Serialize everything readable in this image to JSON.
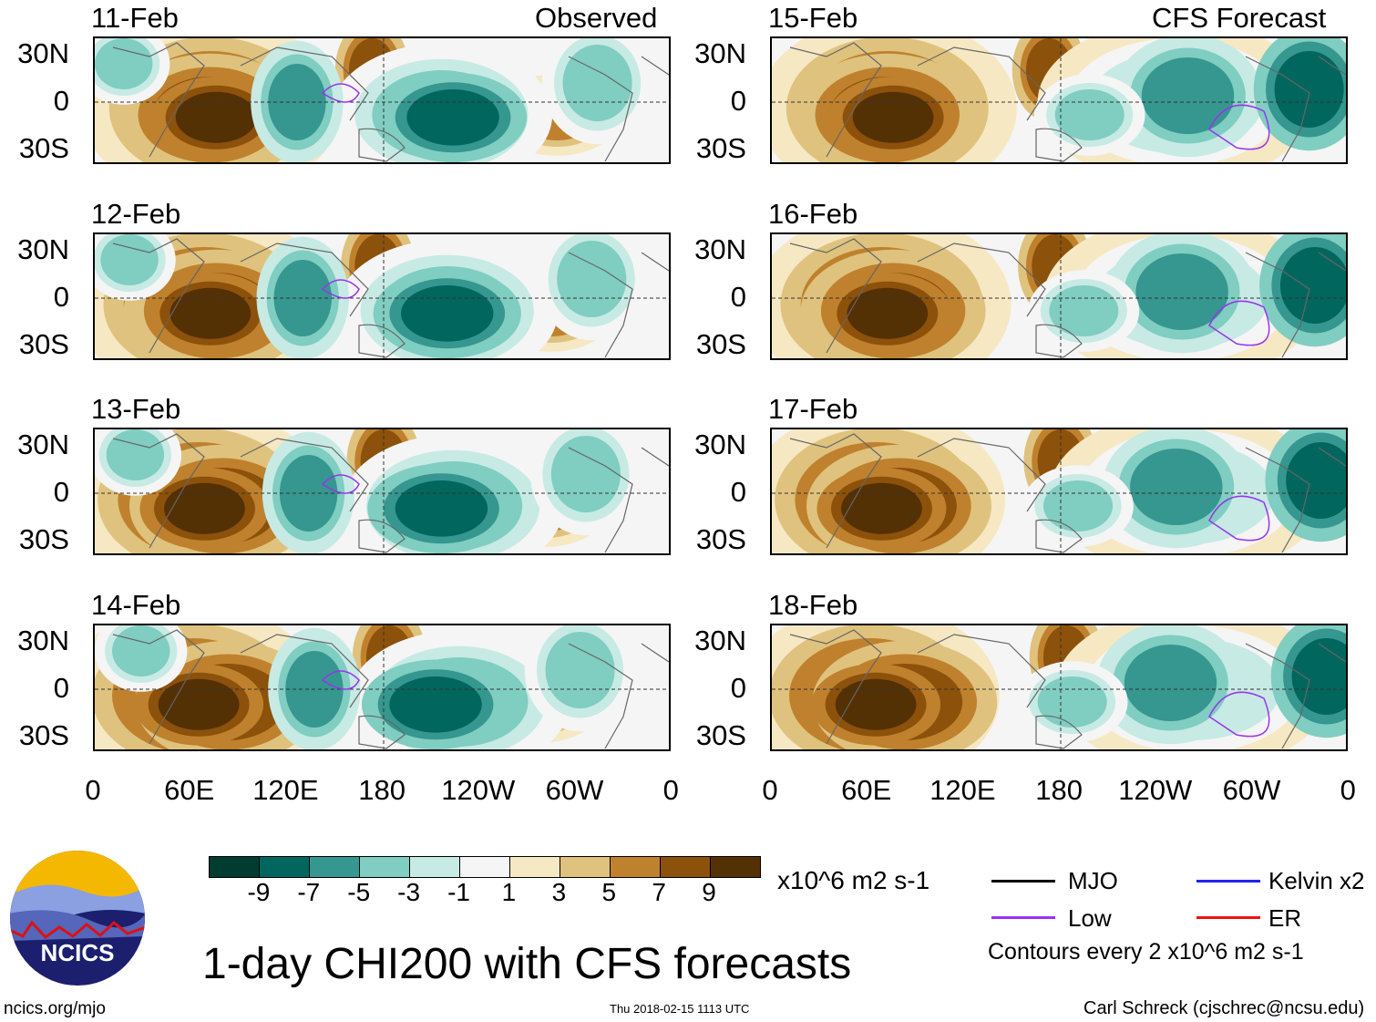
{
  "headers": {
    "observed": "Observed",
    "forecast": "CFS Forecast"
  },
  "panels_left": [
    "11-Feb",
    "12-Feb",
    "13-Feb",
    "14-Feb"
  ],
  "panels_right": [
    "15-Feb",
    "16-Feb",
    "17-Feb",
    "18-Feb"
  ],
  "y_ticks": [
    "30N",
    "0",
    "30S"
  ],
  "x_ticks": [
    "0",
    "60E",
    "120E",
    "180",
    "120W",
    "60W",
    "0"
  ],
  "colorbar": {
    "colors": [
      "#003c30",
      "#01665e",
      "#35978f",
      "#80cdc1",
      "#c7eae5",
      "#f5f5f5",
      "#f6e8c3",
      "#dfc27d",
      "#bf812d",
      "#8c510a",
      "#543005"
    ],
    "labels": [
      "-9",
      "-7",
      "-5",
      "-3",
      "-1",
      "1",
      "3",
      "5",
      "7",
      "9"
    ],
    "units": "x10^6 m2 s-1"
  },
  "legend": {
    "items": [
      {
        "label": "MJO",
        "color": "#000000"
      },
      {
        "label": "Kelvin x2",
        "color": "#2222ee"
      },
      {
        "label": "Low",
        "color": "#9933ee"
      },
      {
        "label": "ER",
        "color": "#ee1111"
      }
    ],
    "contours": "Contours every 2 x10^6 m2 s-1"
  },
  "title": "1-day CHI200 with CFS forecasts",
  "logo_text": "NCICS",
  "footer": {
    "left": "ncics.org/mjo",
    "center": "Thu 2018-02-15 1113 UTC",
    "right": "Carl Schreck (cjschrec@ncsu.edu)"
  }
}
